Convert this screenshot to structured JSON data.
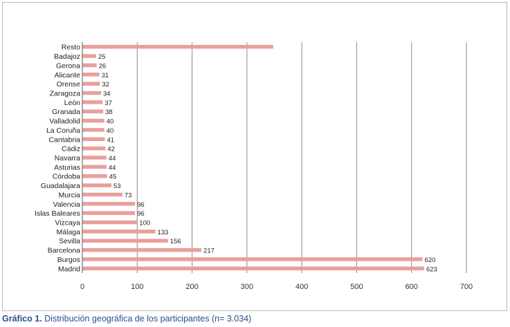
{
  "chart_data": {
    "type": "bar",
    "orientation": "horizontal",
    "categories": [
      "Resto",
      "Badajoz",
      "Gerona",
      "Alicante",
      "Orense",
      "Zaragoza",
      "León",
      "Granada",
      "Valladolid",
      "La Coruña",
      "Cantabria",
      "Cádiz",
      "Navarra",
      "Asturias",
      "Córdoba",
      "Guadalajara",
      "Murcia",
      "Valencia",
      "Islas Baleares",
      "Vizcaya",
      "Málaga",
      "Sevilla",
      "Barcelona",
      "Burgos",
      "Madrid"
    ],
    "values": [
      348,
      25,
      26,
      31,
      32,
      34,
      37,
      38,
      40,
      40,
      41,
      42,
      44,
      44,
      45,
      53,
      73,
      96,
      96,
      100,
      133,
      156,
      217,
      620,
      623
    ],
    "data_labels": [
      "",
      "25",
      "26",
      "31",
      "32",
      "34",
      "37",
      "38",
      "40",
      "40",
      "41",
      "42",
      "44",
      "44",
      "45",
      "53",
      "73",
      "96",
      "96",
      "100",
      "133",
      "156",
      "217",
      "620",
      "623"
    ],
    "xlim": [
      0,
      700
    ],
    "xticks": [
      0,
      100,
      200,
      300,
      400,
      500,
      600,
      700
    ],
    "grid": true,
    "bar_color": "#e8a09c",
    "grid_color": "#8a8a8a"
  },
  "caption": {
    "label": "Gráfico 1.",
    "text": "Distribución geográfica de los participantes (n= 3.034)",
    "color": "#2a4f8f"
  }
}
